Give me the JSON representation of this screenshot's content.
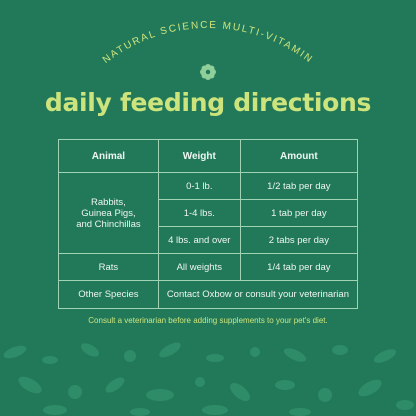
{
  "header": {
    "arc_title": "NATURAL SCIENCE MULTI-VITAMIN",
    "title": "daily feeding directions"
  },
  "table": {
    "columns": [
      "Animal",
      "Weight",
      "Amount"
    ],
    "groups": [
      {
        "animal": [
          "Rabbits,",
          "Guinea Pigs,",
          "and Chinchillas"
        ],
        "rows": [
          [
            "0-1 lb.",
            "1/2 tab per day"
          ],
          [
            "1-4 lbs.",
            "1 tab per day"
          ],
          [
            "4 lbs. and over",
            "2 tabs per day"
          ]
        ]
      },
      {
        "animal": [
          "Rats"
        ],
        "rows": [
          [
            "All weights",
            "1/4 tab per day"
          ]
        ]
      }
    ],
    "other": {
      "animal": "Other Species",
      "note": "Contact Oxbow or consult your veterinarian"
    }
  },
  "footnote": "Consult a veterinarian before adding supplements to your pet's diet."
}
